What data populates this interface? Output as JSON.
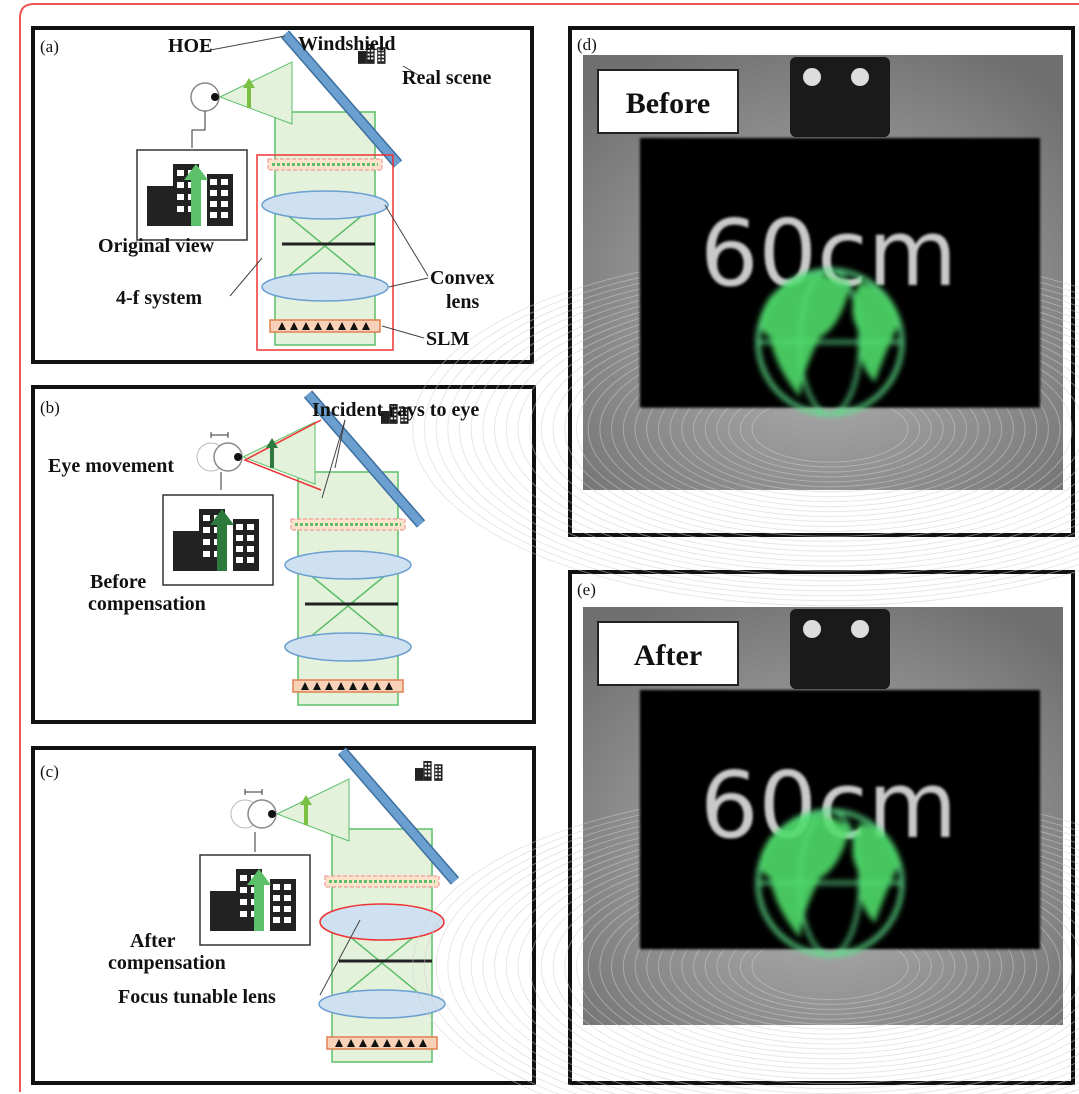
{
  "panels": {
    "a": {
      "label": "(a)",
      "hoe": "HOE",
      "windshield": "Windshield",
      "real_scene": "Real scene",
      "original_view": "Original view",
      "system": "4-f system",
      "convex_lens": [
        "Convex",
        "lens"
      ],
      "slm": "SLM"
    },
    "b": {
      "label": "(b)",
      "incident_rays": "Incident rays to eye",
      "eye_movement": "Eye movement",
      "before_compensation": [
        "Before",
        "compensation"
      ]
    },
    "c": {
      "label": "(c)",
      "after_compensation": [
        "After",
        "compensation"
      ],
      "focus_tunable_lens": "Focus tunable lens"
    },
    "d": {
      "label": "(d)",
      "tag": "Before",
      "distance": "60cm"
    },
    "e": {
      "label": "(e)",
      "tag": "After",
      "distance": "60cm"
    }
  }
}
